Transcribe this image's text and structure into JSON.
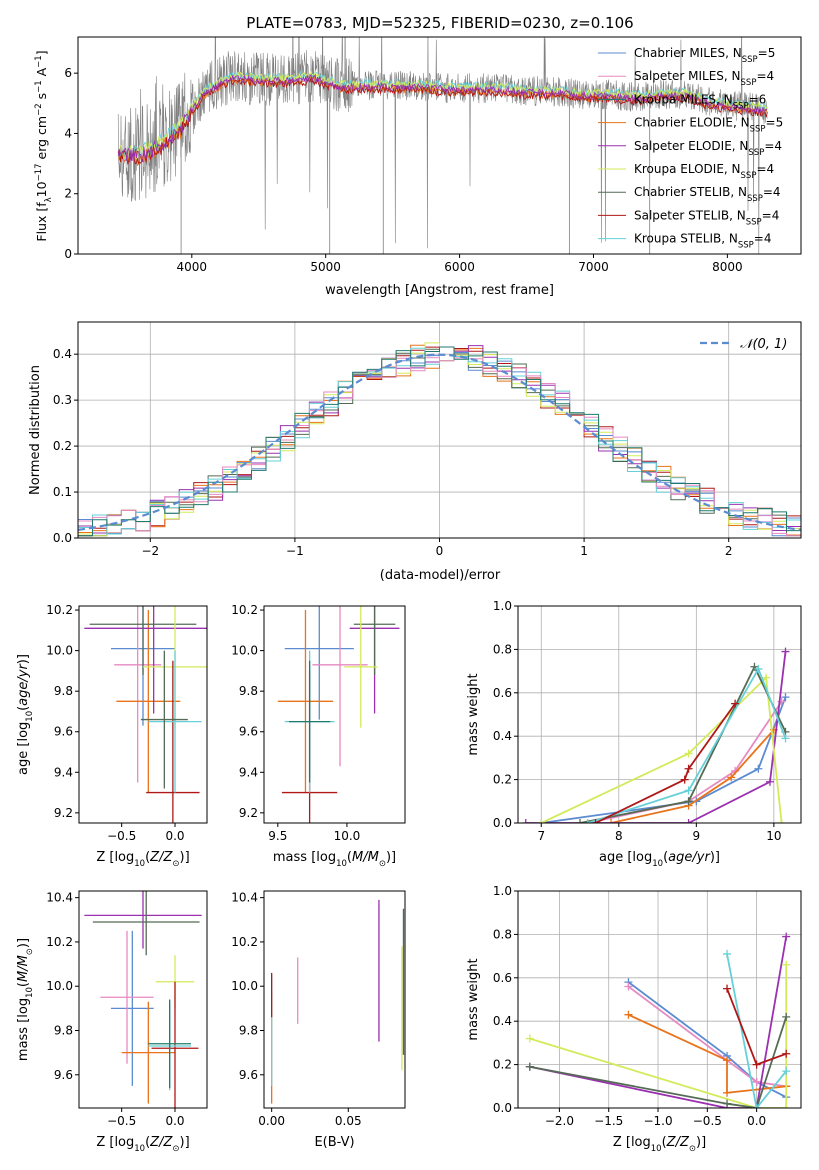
{
  "figure": {
    "title": "PLATE=0783, MJD=52325, FIBERID=0230, z=0.106"
  },
  "legend_entries": [
    {
      "label": "Chabrier MILES, N",
      "sub": "SSP",
      "suffix": "=5",
      "color": "#5b8bd0"
    },
    {
      "label": "Salpeter MILES, N",
      "sub": "SSP",
      "suffix": "=4",
      "color": "#e78ac3"
    },
    {
      "label": "Kroupa MILES, N",
      "sub": "SSP",
      "suffix": "=6",
      "color": "#1f7a6d"
    },
    {
      "label": "Chabrier ELODIE, N",
      "sub": "SSP",
      "suffix": "=5",
      "color": "#e9731a"
    },
    {
      "label": "Salpeter ELODIE, N",
      "sub": "SSP",
      "suffix": "=4",
      "color": "#9b30b0"
    },
    {
      "label": "Kroupa ELODIE, N",
      "sub": "SSP",
      "suffix": "=4",
      "color": "#d4ea5a"
    },
    {
      "label": "Chabrier STELIB, N",
      "sub": "SSP",
      "suffix": "=4",
      "color": "#556b55"
    },
    {
      "label": "Salpeter STELIB, N",
      "sub": "SSP",
      "suffix": "=4",
      "color": "#b01818"
    },
    {
      "label": "Kroupa STELIB, N",
      "sub": "SSP",
      "suffix": "=4",
      "color": "#66d0d8"
    }
  ],
  "chart_data": [
    {
      "id": "spectrum",
      "type": "line",
      "xlabel": "wavelength [Angstrom, rest frame]",
      "ylabel": "Flux [f_λ10^-17 erg cm^-2 s^-1 A^-1]",
      "xlim": [
        3150,
        8550
      ],
      "ylim": [
        0,
        7.2
      ],
      "xticks": [
        4000,
        5000,
        6000,
        7000,
        8000
      ],
      "yticks": [
        0,
        2,
        4,
        6
      ],
      "grid": false,
      "legend": "top-right",
      "data_color": "#808080",
      "data_envelope": {
        "x": [
          3450,
          3600,
          3750,
          3900,
          4000,
          4100,
          4300,
          4500,
          4700,
          4900,
          5100,
          5300,
          5500,
          5700,
          5900,
          6100,
          6300,
          6500,
          6700,
          6900,
          7100,
          7300,
          7500,
          7700,
          7900,
          8100,
          8300
        ],
        "y": [
          3.4,
          3.3,
          3.6,
          4.1,
          4.8,
          5.4,
          5.9,
          5.8,
          5.8,
          5.9,
          5.6,
          5.6,
          5.6,
          5.6,
          5.5,
          5.5,
          5.5,
          5.4,
          5.4,
          5.3,
          5.3,
          5.2,
          5.3,
          5.3,
          5.0,
          4.9,
          4.8
        ]
      },
      "model_series": [
        {
          "color": "#66d0d8",
          "offset": 0.08
        },
        {
          "color": "#e9731a",
          "offset": -0.12
        },
        {
          "color": "#d4ea5a",
          "offset": 0.05
        },
        {
          "color": "#b01818",
          "offset": -0.15
        },
        {
          "color": "#9b30b0",
          "offset": -0.05
        }
      ]
    },
    {
      "id": "residual-histogram",
      "type": "line",
      "xlabel": "(data-model)/error",
      "ylabel": "Normed distribution",
      "xlim": [
        -2.5,
        2.5
      ],
      "ylim": [
        0,
        0.47
      ],
      "xticks": [
        -2,
        -1,
        0,
        1,
        2
      ],
      "yticks": [
        0.0,
        0.1,
        0.2,
        0.3,
        0.4
      ],
      "grid": true,
      "legend": "top-right",
      "reference_curve": {
        "label": "𝒩(0, 1)",
        "color": "#5b8bd0"
      },
      "bin_width": 0.1
    },
    {
      "id": "age-vs-Z",
      "type": "scatter",
      "xlabel": "Z [log10(Z/Z⊙)]",
      "ylabel": "age  [log10(age/yr)]",
      "xlim": [
        -0.9,
        0.3
      ],
      "ylim": [
        9.15,
        10.22
      ],
      "xticks": [
        -0.5,
        0.0
      ],
      "yticks": [
        9.2,
        9.4,
        9.6,
        9.8,
        10.0,
        10.2
      ],
      "grid": false,
      "points": [
        {
          "color": "#5b8bd0",
          "x": -0.3,
          "y": 10.01,
          "xerr": 0.3,
          "yerr": 0.38
        },
        {
          "color": "#e78ac3",
          "x": -0.35,
          "y": 9.93,
          "xerr": 0.22,
          "yerr": 0.58
        },
        {
          "color": "#e9731a",
          "x": -0.25,
          "y": 9.75,
          "xerr": 0.3,
          "yerr": 0.45
        },
        {
          "color": "#9b30b0",
          "x": -0.2,
          "y": 10.11,
          "xerr": 0.65,
          "yerr": 0.42
        },
        {
          "color": "#556b55",
          "x": -0.3,
          "y": 10.13,
          "xerr": 0.5,
          "yerr": 0.25
        },
        {
          "color": "#d4ea5a",
          "x": 0.0,
          "y": 9.92,
          "xerr": 0.3,
          "yerr": 0.3
        },
        {
          "color": "#b01818",
          "x": -0.02,
          "y": 9.3,
          "xerr": 0.25,
          "yerr": 0.65
        },
        {
          "color": "#66d0d8",
          "x": 0.0,
          "y": 9.65,
          "xerr": 0.25,
          "yerr": 0.35
        },
        {
          "color": "#556b55",
          "x": -0.1,
          "y": 9.66,
          "xerr": 0.22,
          "yerr": 0.34
        }
      ]
    },
    {
      "id": "age-vs-mass",
      "type": "scatter",
      "xlabel": "mass [log10(M/M⊙)]",
      "xlim": [
        9.4,
        10.42
      ],
      "ylim": [
        9.15,
        10.22
      ],
      "xticks": [
        9.5,
        10.0
      ],
      "yticks": [
        9.2,
        9.4,
        9.6,
        9.8,
        10.0,
        10.2
      ],
      "grid": false,
      "points": [
        {
          "color": "#5b8bd0",
          "x": 9.8,
          "y": 10.01,
          "xerr": 0.25,
          "yerr": 0.35
        },
        {
          "color": "#e78ac3",
          "x": 9.95,
          "y": 9.93,
          "xerr": 0.2,
          "yerr": 0.5
        },
        {
          "color": "#e9731a",
          "x": 9.7,
          "y": 9.75,
          "xerr": 0.2,
          "yerr": 0.45
        },
        {
          "color": "#9b30b0",
          "x": 10.2,
          "y": 10.11,
          "xerr": 0.18,
          "yerr": 0.42
        },
        {
          "color": "#556b55",
          "x": 10.2,
          "y": 10.13,
          "xerr": 0.15,
          "yerr": 0.25
        },
        {
          "color": "#d4ea5a",
          "x": 10.1,
          "y": 9.92,
          "xerr": 0.12,
          "yerr": 0.3
        },
        {
          "color": "#b01818",
          "x": 9.73,
          "y": 9.3,
          "xerr": 0.2,
          "yerr": 0.6
        },
        {
          "color": "#66d0d8",
          "x": 9.73,
          "y": 9.65,
          "xerr": 0.18,
          "yerr": 0.35
        },
        {
          "color": "#1f7a6d",
          "x": 9.73,
          "y": 9.65,
          "xerr": 0.15,
          "yerr": 0.3
        }
      ]
    },
    {
      "id": "mass-weight-vs-age",
      "type": "line",
      "xlabel": "age  [log10(age/yr)]",
      "ylabel": "mass weight",
      "xlim": [
        6.7,
        10.35
      ],
      "ylim": [
        0,
        1.0
      ],
      "xticks": [
        7,
        8,
        9,
        10
      ],
      "yticks": [
        0.0,
        0.2,
        0.4,
        0.6,
        0.8,
        1.0
      ],
      "grid": true,
      "series": [
        {
          "color": "#5b8bd0",
          "x": [
            7.0,
            9.0,
            9.8,
            10.15
          ],
          "y": [
            0.0,
            0.1,
            0.25,
            0.58
          ]
        },
        {
          "color": "#e78ac3",
          "x": [
            7.6,
            8.9,
            9.5,
            10.1
          ],
          "y": [
            0.0,
            0.1,
            0.24,
            0.56
          ]
        },
        {
          "color": "#e9731a",
          "x": [
            7.9,
            8.9,
            9.45,
            10.0
          ],
          "y": [
            0.0,
            0.08,
            0.21,
            0.43
          ]
        },
        {
          "color": "#9b30b0",
          "x": [
            6.8,
            8.9,
            9.95,
            10.15
          ],
          "y": [
            0.0,
            0.0,
            0.19,
            0.79
          ]
        },
        {
          "color": "#d4ea5a",
          "x": [
            7.0,
            8.9,
            9.9,
            10.1
          ],
          "y": [
            0.0,
            0.32,
            0.67,
            0.0
          ]
        },
        {
          "color": "#556b55",
          "x": [
            7.5,
            8.9,
            9.75,
            10.15
          ],
          "y": [
            0.0,
            0.1,
            0.72,
            0.42
          ]
        },
        {
          "color": "#66d0d8",
          "x": [
            7.6,
            8.9,
            9.8,
            10.15
          ],
          "y": [
            0.0,
            0.15,
            0.71,
            0.39
          ]
        },
        {
          "color": "#b01818",
          "x": [
            7.7,
            8.85,
            8.9,
            9.5
          ],
          "y": [
            0.0,
            0.2,
            0.25,
            0.55
          ]
        }
      ]
    },
    {
      "id": "mass-vs-Z",
      "type": "scatter",
      "xlabel": "Z [log10(Z/Z⊙)]",
      "ylabel": "mass [log10(M/M⊙)]",
      "xlim": [
        -0.9,
        0.3
      ],
      "ylim": [
        9.45,
        10.43
      ],
      "xticks": [
        -0.5,
        0.0
      ],
      "yticks": [
        9.6,
        9.8,
        10.0,
        10.2,
        10.4
      ],
      "grid": false,
      "points": [
        {
          "color": "#5b8bd0",
          "x": -0.4,
          "y": 9.9,
          "xerr": 0.2,
          "yerr": 0.35
        },
        {
          "color": "#e78ac3",
          "x": -0.45,
          "y": 9.95,
          "xerr": 0.25,
          "yerr": 0.3
        },
        {
          "color": "#e9731a",
          "x": -0.25,
          "y": 9.7,
          "xerr": 0.25,
          "yerr": 0.23
        },
        {
          "color": "#9b30b0",
          "x": -0.3,
          "y": 10.32,
          "xerr": 0.55,
          "yerr": 0.15
        },
        {
          "color": "#556b55",
          "x": -0.27,
          "y": 10.29,
          "xerr": 0.5,
          "yerr": 0.15
        },
        {
          "color": "#d4ea5a",
          "x": 0.0,
          "y": 10.02,
          "xerr": 0.18,
          "yerr": 0.12
        },
        {
          "color": "#b01818",
          "x": 0.0,
          "y": 9.72,
          "xerr": 0.22,
          "yerr": 0.3
        },
        {
          "color": "#66d0d8",
          "x": -0.05,
          "y": 9.73,
          "xerr": 0.2,
          "yerr": 0.2
        },
        {
          "color": "#1f7a6d",
          "x": -0.05,
          "y": 9.74,
          "xerr": 0.2,
          "yerr": 0.2
        }
      ]
    },
    {
      "id": "mass-vs-EBV",
      "type": "scatter",
      "xlabel": "E(B-V)",
      "xlim": [
        -0.005,
        0.087
      ],
      "ylim": [
        9.45,
        10.43
      ],
      "xticks": [
        0.0,
        0.05
      ],
      "yticks": [
        9.6,
        9.8,
        10.0,
        10.2,
        10.4
      ],
      "grid": false,
      "points": [
        {
          "color": "#e9731a",
          "x": 0.0,
          "y": 9.72,
          "xerr": 0,
          "yerr": 0.25
        },
        {
          "color": "#66d0d8",
          "x": 0.0,
          "y": 9.8,
          "xerr": 0,
          "yerr": 0.25
        },
        {
          "color": "#b01818",
          "x": 0.0,
          "y": 9.96,
          "xerr": 0,
          "yerr": 0.1
        },
        {
          "color": "#e78ac3",
          "x": 0.017,
          "y": 9.98,
          "xerr": 0,
          "yerr": 0.15
        },
        {
          "color": "#9b30b0",
          "x": 0.07,
          "y": 10.07,
          "xerr": 0,
          "yerr": 0.32
        },
        {
          "color": "#d4ea5a",
          "x": 0.085,
          "y": 9.9,
          "xerr": 0,
          "yerr": 0.28
        },
        {
          "color": "#556b55",
          "x": 0.086,
          "y": 10.02,
          "xerr": 0,
          "yerr": 0.33
        }
      ]
    },
    {
      "id": "mass-weight-vs-Z",
      "type": "line",
      "xlabel": "Z [log10(Z/Z⊙)]",
      "ylabel": "mass weight",
      "xlim": [
        -2.42,
        0.45
      ],
      "ylim": [
        0,
        1.0
      ],
      "xticks": [
        -2.0,
        -1.5,
        -1.0,
        -0.5,
        0.0
      ],
      "yticks": [
        0.0,
        0.2,
        0.4,
        0.6,
        0.8,
        1.0
      ],
      "grid": true,
      "series": [
        {
          "color": "#5b8bd0",
          "x": [
            -1.3,
            -0.3,
            0.0,
            0.3
          ],
          "y": [
            0.58,
            0.24,
            0.12,
            0.05
          ]
        },
        {
          "color": "#e78ac3",
          "x": [
            -1.3,
            -0.3,
            0.0,
            0.3
          ],
          "y": [
            0.56,
            0.22,
            0.12,
            0.1
          ]
        },
        {
          "color": "#e9731a",
          "x": [
            -1.3,
            -0.3,
            -0.3,
            0.3
          ],
          "y": [
            0.43,
            0.22,
            0.07,
            0.1
          ]
        },
        {
          "color": "#9b30b0",
          "x": [
            -2.3,
            -0.3,
            0.0,
            0.3
          ],
          "y": [
            0.19,
            0.0,
            0.0,
            0.79
          ]
        },
        {
          "color": "#d4ea5a",
          "x": [
            -2.3,
            0.0,
            0.3,
            0.3
          ],
          "y": [
            0.32,
            0.0,
            0.0,
            0.66
          ]
        },
        {
          "color": "#556b55",
          "x": [
            -2.3,
            -0.3,
            0.0,
            0.3
          ],
          "y": [
            0.19,
            0.02,
            0.0,
            0.42
          ]
        },
        {
          "color": "#66d0d8",
          "x": [
            -0.3,
            0.0,
            0.3
          ],
          "y": [
            0.71,
            0.0,
            0.17
          ]
        },
        {
          "color": "#b01818",
          "x": [
            -0.3,
            0.0,
            0.3
          ],
          "y": [
            0.55,
            0.2,
            0.25
          ]
        }
      ]
    }
  ]
}
